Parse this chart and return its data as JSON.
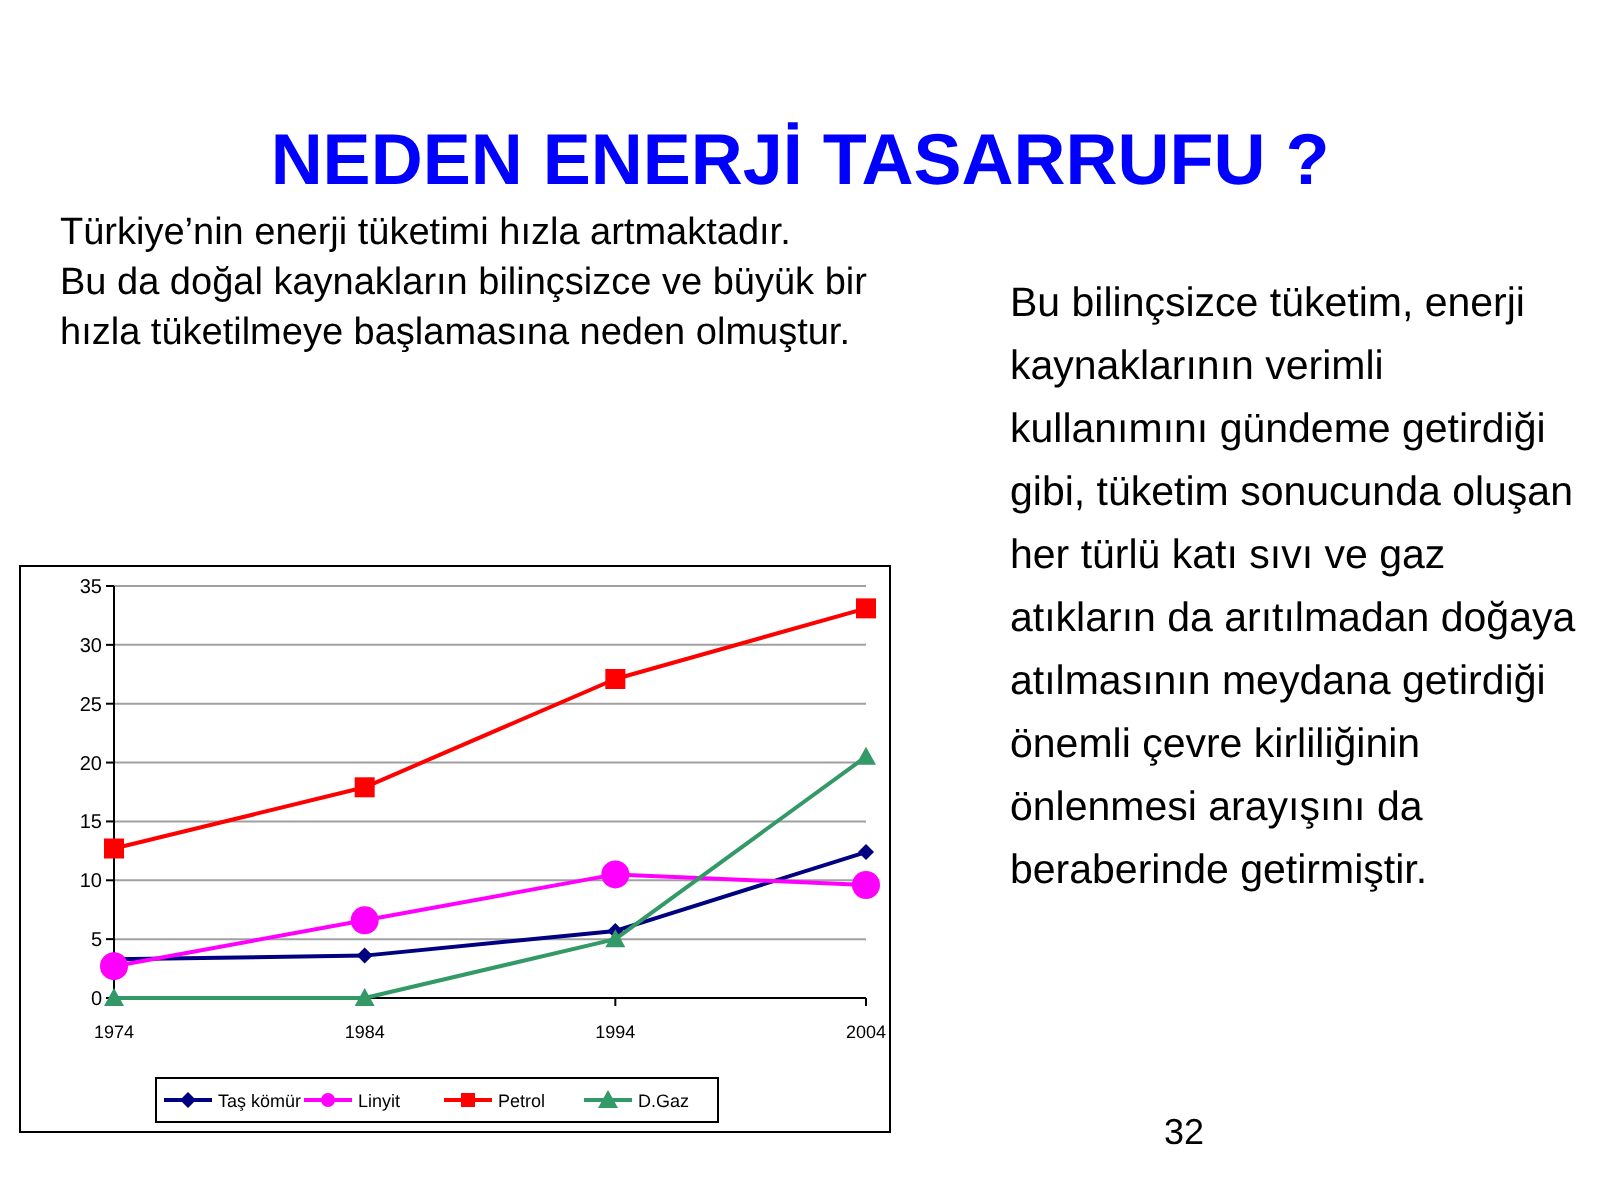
{
  "chart_data": {
    "type": "line",
    "title": "NEDEN ENERJİ TASARRUFU ?",
    "categories": [
      "1974",
      "1984",
      "1994",
      "2004"
    ],
    "series": [
      {
        "name": "Taş kömür",
        "color": "#000080",
        "marker": "diamond",
        "values": [
          3.3,
          3.6,
          5.7,
          12.4
        ]
      },
      {
        "name": "Linyit",
        "color": "#ff00ff",
        "marker": "circle",
        "values": [
          2.7,
          6.6,
          10.5,
          9.6
        ]
      },
      {
        "name": "Petrol",
        "color": "#ff0000",
        "marker": "square",
        "values": [
          12.7,
          17.9,
          27.1,
          33.1
        ]
      },
      {
        "name": "D.Gaz",
        "color": "#339966",
        "marker": "triangle",
        "values": [
          0,
          0,
          5.0,
          20.5
        ]
      }
    ],
    "ylim": [
      0,
      35
    ],
    "yticks": [
      0,
      5,
      10,
      15,
      20,
      25,
      30,
      35
    ],
    "grid": "y",
    "legend": "bottom",
    "annotations": [
      "Türkiye’nin enerji tüketimi hızla artmaktadır.",
      "Bu da doğal kaynakların bilinçsizce ve büyük bir hızla tüketilmeye başlamasına neden olmuştur.",
      "Bu bilinçsizce tüketim, enerji kaynaklarının verimli kullanımını gündeme getirdiği gibi, tüketim sonucunda oluşan her türlü katı sıvı ve gaz atıkların da arıtılmadan doğaya atılmasının meydana getirdiği önemli çevre kirliliğinin önlenmesi arayışını da beraberinde getirmiştir.",
      "32"
    ]
  }
}
